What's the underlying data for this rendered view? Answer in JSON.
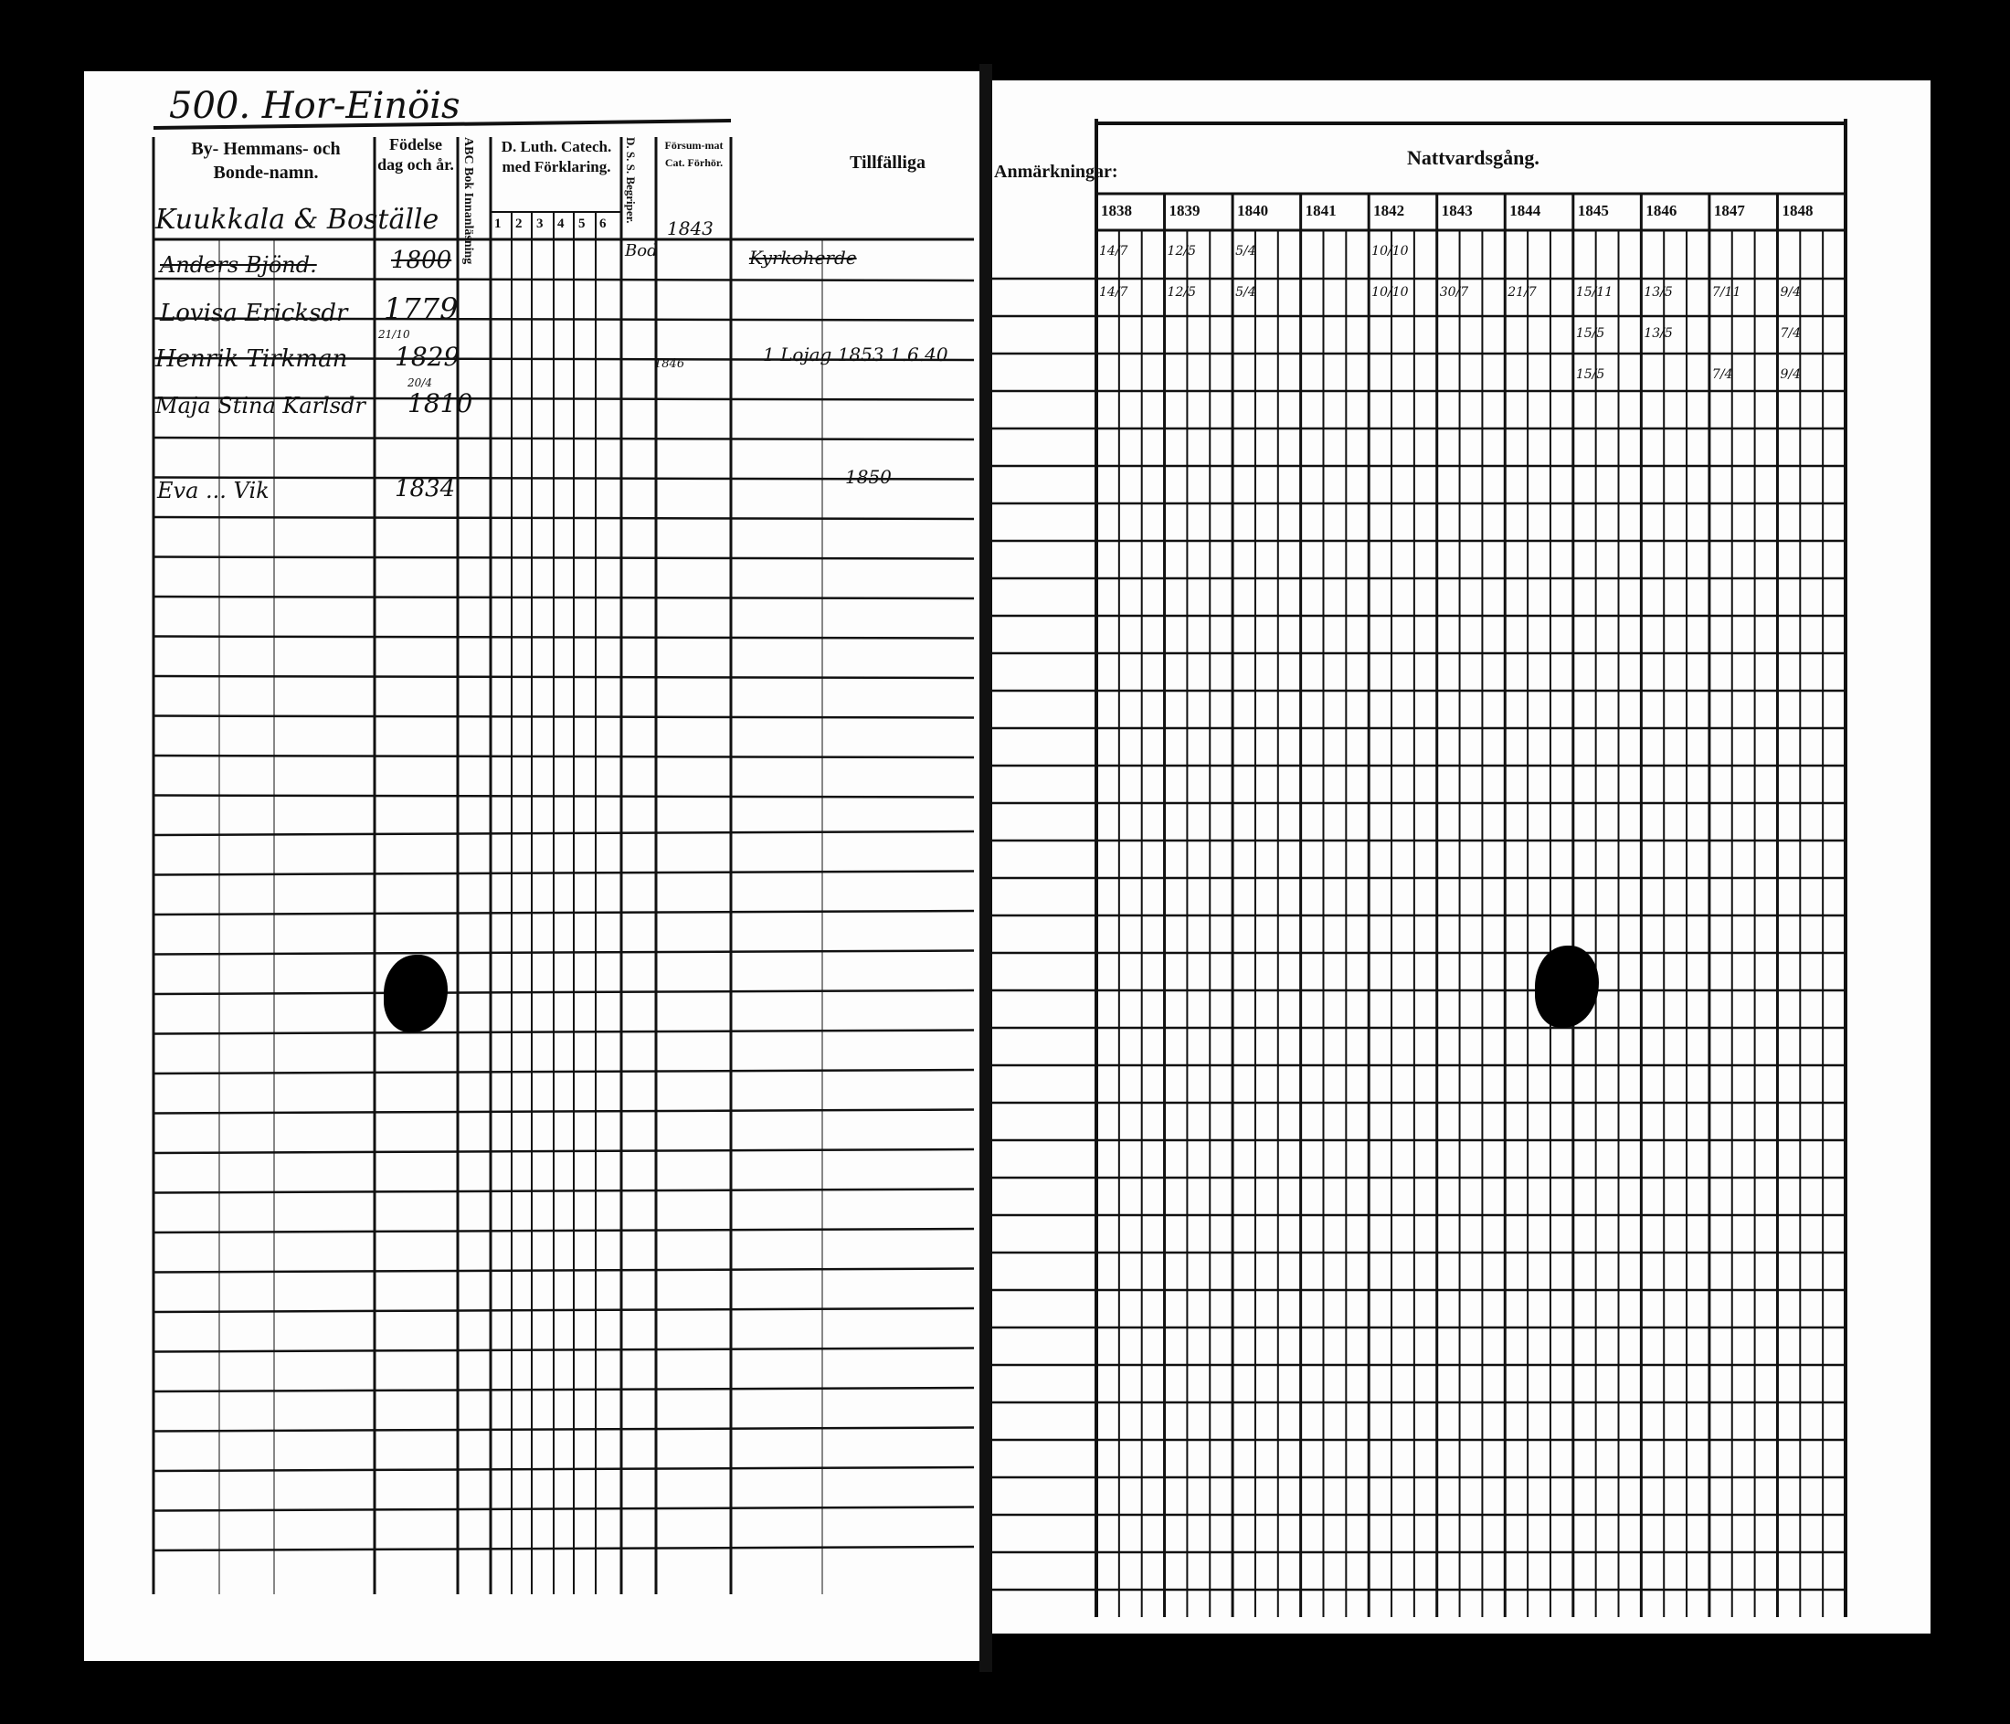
{
  "page_header": {
    "page_number_and_village": "500. Hor-Einöis"
  },
  "left_page": {
    "columns": {
      "name": "By- Hemmans- och Bonde-namn.",
      "birth": "Födelse dag och år.",
      "abc_book": "ABC Bok Innanläsning",
      "catechism": "D. Luth. Catech. med Förklaring.",
      "catechism_parts": [
        "1",
        "2",
        "3",
        "4",
        "5",
        "6"
      ],
      "ds_begriper": "D. S. S. Begriper.",
      "missed": "Försum-mat Cat. Förhör.",
      "remarks": "Tillfälliga"
    },
    "farm_name": "Kuukkala & Boställe",
    "rows": [
      {
        "name": "Anders Bjönd.",
        "birth": "1800",
        "note": "Kyrkoherde"
      },
      {
        "name": "Lovisa Ericksdr",
        "birth": "1779",
        "note": ""
      },
      {
        "name": "Henrik Tirkman",
        "birth": "1829",
        "missed": "1846",
        "note": "1 Lojag 1853 1.6.40"
      },
      {
        "name": "Maja Stina Karlsdr",
        "birth": "1810",
        "note": ""
      },
      {
        "name": "Eva ... Vik",
        "birth": "1834",
        "note": "1850"
      }
    ],
    "birth_day_fragments": [
      "21/10",
      "20/4"
    ],
    "catechism_top_note": "Bod",
    "catechism_top_date": "1843"
  },
  "right_page": {
    "remarks_header_fragment": "Anmärkningar:",
    "section_title": "Nattvardsgång.",
    "years": [
      "1838",
      "1839",
      "1840",
      "1841",
      "1842",
      "1843",
      "1844",
      "1845",
      "1846",
      "1847",
      "1848"
    ],
    "entries": [
      [
        "14/7",
        "12/5",
        "5/4",
        "10/10"
      ],
      [
        "14/7",
        "12/5",
        "5/4",
        "10/10",
        "30/7",
        "21/7",
        "15/11",
        "13/5",
        "7/11",
        "9/4"
      ],
      [
        "15/5",
        "13/5",
        "7/4"
      ],
      [
        "15/5",
        "7/4",
        "9/4"
      ]
    ]
  },
  "colors": {
    "paper": "#fdfdfd",
    "ink": "#111111",
    "background": "#000000"
  }
}
